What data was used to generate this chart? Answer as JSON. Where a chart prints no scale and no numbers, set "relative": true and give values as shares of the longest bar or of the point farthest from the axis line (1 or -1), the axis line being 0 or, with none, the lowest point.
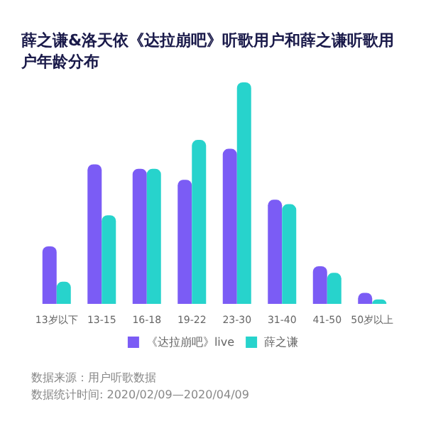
{
  "chart_data": {
    "type": "bar",
    "title": "薛之谦&洛天依《达拉崩吧》听歌用户和薛之谦听歌用户年龄分布",
    "relative": true,
    "categories": [
      "13岁以下",
      "13-15",
      "16-18",
      "19-22",
      "23-30",
      "31-40",
      "41-50",
      "50岁以上"
    ],
    "series": [
      {
        "name": "《达拉崩吧》live",
        "color": "#7b5cf5",
        "values": [
          0.26,
          0.63,
          0.61,
          0.56,
          0.7,
          0.47,
          0.17,
          0.05
        ]
      },
      {
        "name": "薛之谦",
        "color": "#27d3cc",
        "values": [
          0.1,
          0.4,
          0.61,
          0.74,
          1,
          0.45,
          0.14,
          0.02
        ]
      }
    ],
    "legend": "bottom",
    "annotations": [
      "数据来源：用户听歌数据",
      "数据统计时间: 2020/02/09—2020/04/09"
    ]
  }
}
